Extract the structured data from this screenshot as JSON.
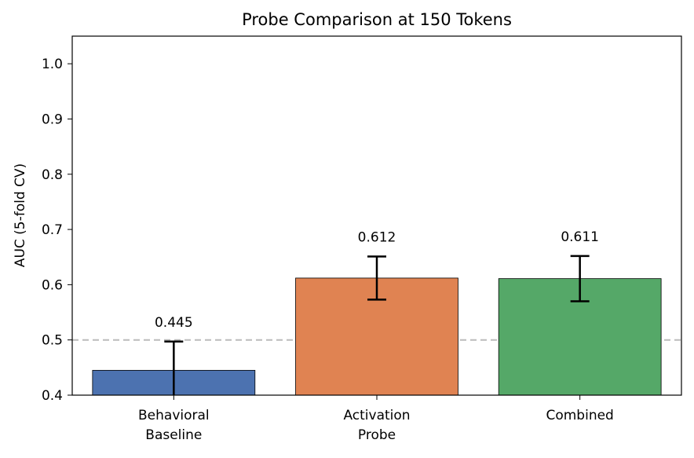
{
  "chart_data": {
    "type": "bar",
    "title": "Probe Comparison at 150 Tokens",
    "ylabel": "AUC (5-fold CV)",
    "xlabel": "",
    "ylim": [
      0.4,
      1.05
    ],
    "yticks": [
      "0.4",
      "0.5",
      "0.6",
      "0.7",
      "0.8",
      "0.9",
      "1.0"
    ],
    "grid": false,
    "reference_line": {
      "y": 0.5,
      "style": "dashed",
      "color": "#bbbbbb"
    },
    "categories": [
      {
        "lines": [
          "Behavioral",
          "Baseline"
        ]
      },
      {
        "lines": [
          "Activation",
          "Probe"
        ]
      },
      {
        "lines": [
          "Combined"
        ]
      }
    ],
    "values": [
      0.445,
      0.612,
      0.611
    ],
    "errors": [
      0.052,
      0.039,
      0.041
    ],
    "value_labels": [
      "0.445",
      "0.612",
      "0.611"
    ],
    "colors": [
      "#4c72b0",
      "#e08352",
      "#55a868"
    ]
  }
}
